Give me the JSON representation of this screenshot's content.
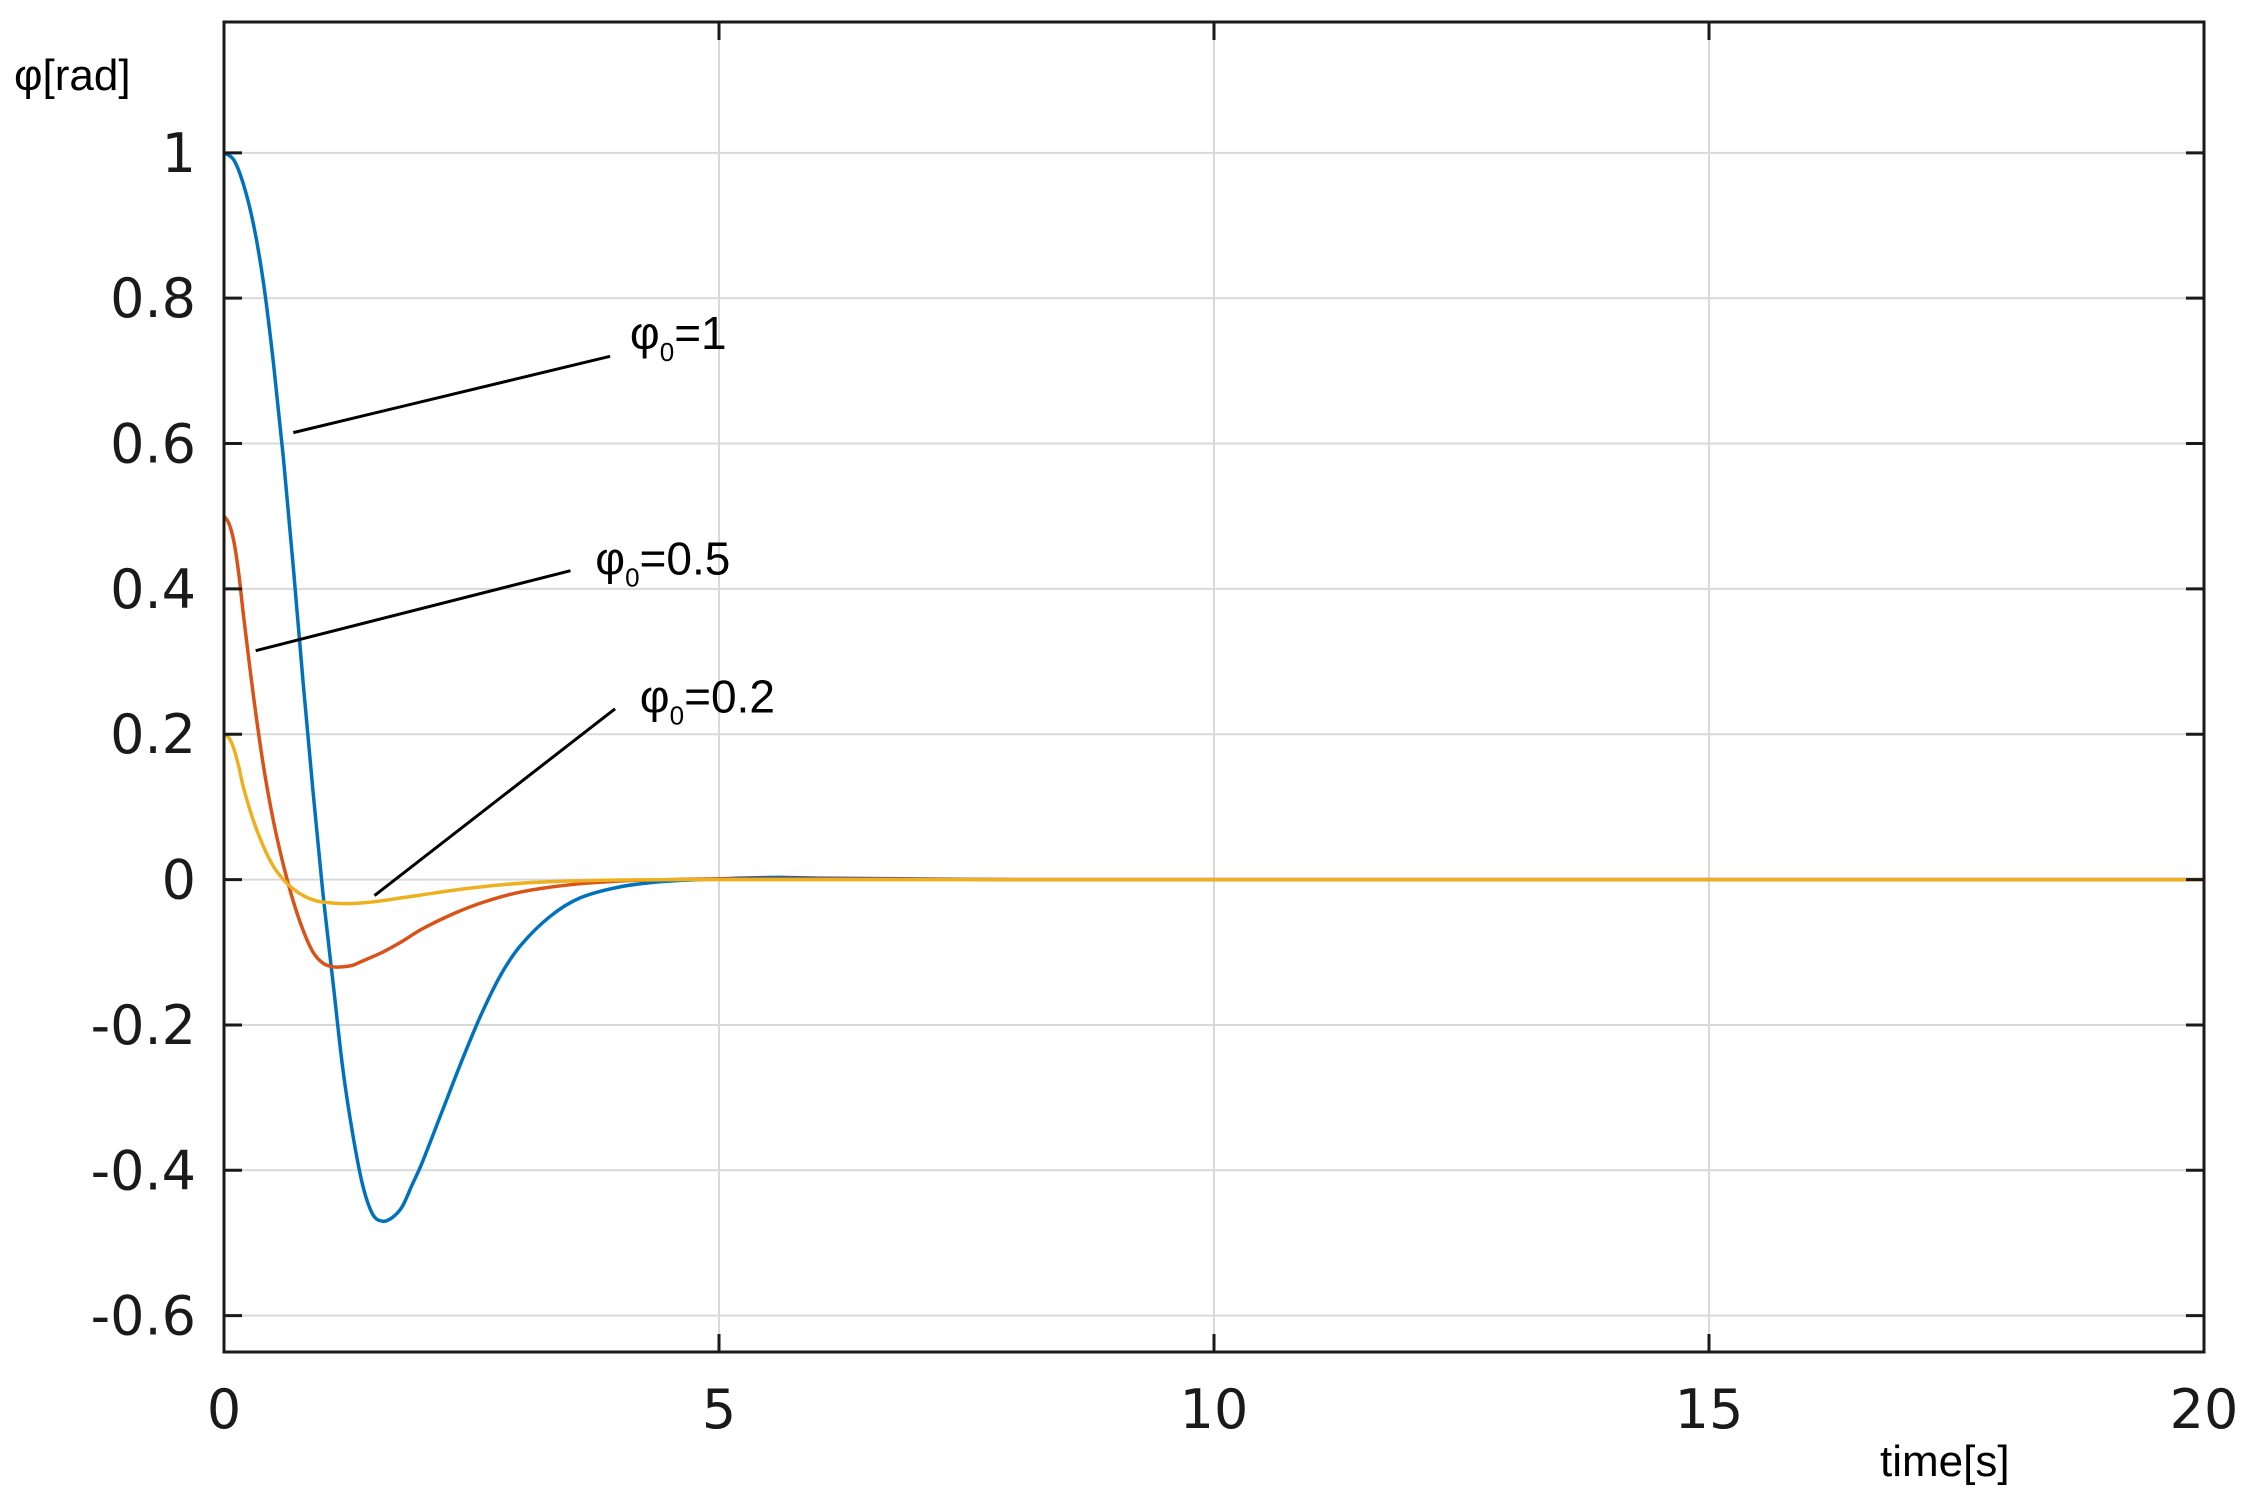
{
  "chart_data": {
    "type": "line",
    "title": "",
    "xlabel": "time[s]",
    "ylabel": "φ[rad]",
    "xlim": [
      0,
      20
    ],
    "ylim": [
      -0.65,
      1.18
    ],
    "xticks": [
      0,
      5,
      10,
      15,
      20
    ],
    "xtick_labels": [
      "0",
      "5",
      "10",
      "15",
      "20"
    ],
    "yticks": [
      1,
      0.8,
      0.6,
      0.4,
      0.2,
      0,
      -0.2,
      -0.4,
      -0.6
    ],
    "ytick_labels": [
      "1",
      "0.8",
      "0.6",
      "0.4",
      "0.2",
      "0",
      "-0.2",
      "-0.4",
      "-0.6"
    ],
    "grid": true,
    "legend": "none",
    "series": [
      {
        "name": "φ0=1",
        "color": "#0072BD",
        "x": [
          0,
          0.1,
          0.2,
          0.3,
          0.4,
          0.5,
          0.6,
          0.7,
          0.8,
          0.9,
          1.0,
          1.1,
          1.2,
          1.3,
          1.4,
          1.5,
          1.6,
          1.7,
          1.8,
          1.9,
          2.0,
          2.2,
          2.4,
          2.6,
          2.8,
          3.0,
          3.3,
          3.6,
          4.0,
          4.4,
          4.8,
          5.2,
          5.6,
          6.0,
          7.0,
          8.0,
          10.0,
          15.0,
          20.0
        ],
        "y": [
          1.0,
          0.99,
          0.955,
          0.9,
          0.82,
          0.71,
          0.58,
          0.43,
          0.27,
          0.12,
          -0.02,
          -0.14,
          -0.26,
          -0.35,
          -0.42,
          -0.46,
          -0.47,
          -0.465,
          -0.45,
          -0.42,
          -0.39,
          -0.32,
          -0.25,
          -0.185,
          -0.13,
          -0.09,
          -0.05,
          -0.025,
          -0.01,
          -0.003,
          0.0,
          0.002,
          0.003,
          0.002,
          0.001,
          0.0,
          0.0,
          0.0,
          0.0
        ]
      },
      {
        "name": "φ0=0.5",
        "color": "#D95319",
        "x": [
          0,
          0.05,
          0.1,
          0.15,
          0.2,
          0.3,
          0.4,
          0.5,
          0.6,
          0.7,
          0.8,
          0.9,
          1.0,
          1.1,
          1.2,
          1.3,
          1.4,
          1.6,
          1.8,
          2.0,
          2.3,
          2.6,
          3.0,
          3.5,
          4.0,
          4.5,
          5.0,
          6.0,
          8.0,
          10.0,
          20.0
        ],
        "y": [
          0.5,
          0.49,
          0.465,
          0.42,
          0.36,
          0.25,
          0.155,
          0.08,
          0.02,
          -0.03,
          -0.07,
          -0.1,
          -0.115,
          -0.12,
          -0.12,
          -0.118,
          -0.112,
          -0.1,
          -0.085,
          -0.068,
          -0.048,
          -0.032,
          -0.017,
          -0.007,
          -0.002,
          0.0,
          0.001,
          0.001,
          0.0,
          0.0,
          0.0
        ]
      },
      {
        "name": "φ0=0.2",
        "color": "#EDB120",
        "x": [
          0,
          0.05,
          0.1,
          0.15,
          0.2,
          0.3,
          0.4,
          0.5,
          0.6,
          0.7,
          0.8,
          0.9,
          1.0,
          1.2,
          1.4,
          1.6,
          1.8,
          2.0,
          2.3,
          2.6,
          3.0,
          3.5,
          4.0,
          5.0,
          6.0,
          8.0,
          10.0,
          20.0
        ],
        "y": [
          0.2,
          0.195,
          0.18,
          0.155,
          0.125,
          0.08,
          0.045,
          0.018,
          0.0,
          -0.013,
          -0.022,
          -0.028,
          -0.031,
          -0.033,
          -0.032,
          -0.029,
          -0.025,
          -0.021,
          -0.015,
          -0.01,
          -0.005,
          -0.002,
          -0.0005,
          0.0,
          0.0,
          0.0,
          0.0,
          0.0
        ]
      }
    ],
    "annotations": [
      {
        "base": "φ",
        "sub": "0",
        "rest": "=1",
        "tx": 4.1,
        "ty": 0.73,
        "lx1": 3.9,
        "ly1": 0.72,
        "lx2": 0.7,
        "ly2": 0.615
      },
      {
        "base": "φ",
        "sub": "0",
        "rest": "=0.5",
        "tx": 3.75,
        "ty": 0.42,
        "lx1": 3.5,
        "ly1": 0.425,
        "lx2": 0.32,
        "ly2": 0.315
      },
      {
        "base": "φ",
        "sub": "0",
        "rest": "=0.2",
        "tx": 4.2,
        "ty": 0.23,
        "lx1": 3.95,
        "ly1": 0.235,
        "lx2": 1.52,
        "ly2": -0.022
      }
    ]
  }
}
